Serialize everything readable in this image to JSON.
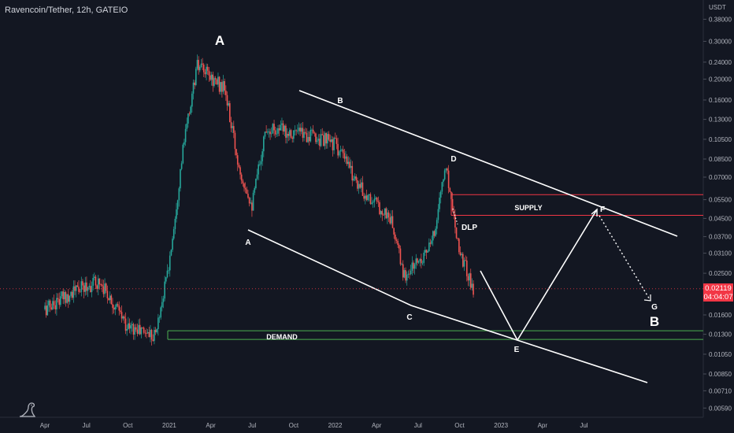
{
  "header": {
    "symbol_title": "Ravencoin/Tether, 12h, GATEIO"
  },
  "price_axis": {
    "currency": "USDT",
    "labels": [
      "0.38000",
      "0.30000",
      "0.24000",
      "0.20000",
      "0.16000",
      "0.13000",
      "0.10500",
      "0.08500",
      "0.07000",
      "0.05500",
      "0.04500",
      "0.03700",
      "0.03100",
      "0.02500",
      "0.01600",
      "0.01300",
      "0.01050",
      "0.00850",
      "0.00710",
      "0.00590"
    ]
  },
  "current_price": {
    "value": "0.02119",
    "countdown": "04:04:07"
  },
  "time_axis": {
    "labels": [
      "Apr",
      "Jul",
      "Oct",
      "2021",
      "Apr",
      "Jul",
      "Oct",
      "2022",
      "Apr",
      "Jul",
      "Oct",
      "2023",
      "Apr",
      "Jul"
    ]
  },
  "colors": {
    "background": "#131722",
    "up": "#26a69a",
    "down": "#ef5350",
    "lines": "#ffffff",
    "supply_zone": "#f23645",
    "demand_zone": "#4caf50",
    "price_badge": "#f23645",
    "axis_text": "#b2b5be"
  },
  "annotations": {
    "wave_A_big": "A",
    "wave_B_big": "B",
    "point_A": "A",
    "point_B": "B",
    "point_C": "C",
    "point_D": "D",
    "point_E": "E",
    "point_F": "F",
    "point_G": "G",
    "dlp": "DLP",
    "supply": "SUPPLY",
    "demand": "DEMAND"
  },
  "chart_data": {
    "type": "candlestick",
    "title": "Ravencoin/Tether, 12h, GATEIO",
    "y_scale": "log",
    "ylim": [
      0.0055,
      0.41
    ],
    "x": [
      "2020-04",
      "2020-07",
      "2020-10",
      "2021-01",
      "2021-04",
      "2021-07",
      "2021-10",
      "2022-01",
      "2022-04",
      "2022-07",
      "2022-10",
      "2023-01",
      "2023-04",
      "2023-07"
    ],
    "approx_close_path": [
      {
        "t": "2020-04",
        "price": 0.017
      },
      {
        "t": "2020-06",
        "price": 0.0205
      },
      {
        "t": "2020-08",
        "price": 0.023
      },
      {
        "t": "2020-10",
        "price": 0.014
      },
      {
        "t": "2020-12",
        "price": 0.013
      },
      {
        "t": "2021-01",
        "price": 0.028
      },
      {
        "t": "2021-02",
        "price": 0.095
      },
      {
        "t": "2021-03",
        "price": 0.23
      },
      {
        "t": "2021-05",
        "price": 0.18
      },
      {
        "t": "2021-06",
        "price": 0.08
      },
      {
        "t": "2021-07",
        "price": 0.052
      },
      {
        "t": "2021-08",
        "price": 0.12
      },
      {
        "t": "2021-11",
        "price": 0.11
      },
      {
        "t": "2022-01",
        "price": 0.1
      },
      {
        "t": "2022-03",
        "price": 0.06
      },
      {
        "t": "2022-05",
        "price": 0.045
      },
      {
        "t": "2022-06",
        "price": 0.024
      },
      {
        "t": "2022-08",
        "price": 0.034
      },
      {
        "t": "2022-09",
        "price": 0.08
      },
      {
        "t": "2022-10",
        "price": 0.032
      },
      {
        "t": "2022-11",
        "price": 0.021
      }
    ],
    "drawings": {
      "supply_zone": {
        "low": 0.0465,
        "high": 0.058
      },
      "demand_zone": {
        "low": 0.0123,
        "high": 0.0135
      },
      "points": [
        {
          "label": "A",
          "t": "2021-07",
          "price": 0.039
        },
        {
          "label": "B",
          "t": "2022-01",
          "price": 0.15
        },
        {
          "label": "C",
          "t": "2022-07",
          "price": 0.0175
        },
        {
          "label": "D",
          "t": "2022-09",
          "price": 0.08
        },
        {
          "label": "E",
          "t": "2023-02",
          "price": 0.0122
        },
        {
          "label": "F",
          "t": "2023-07",
          "price": 0.0485
        },
        {
          "label": "G",
          "t": "2023-09",
          "price": 0.018
        }
      ]
    }
  }
}
